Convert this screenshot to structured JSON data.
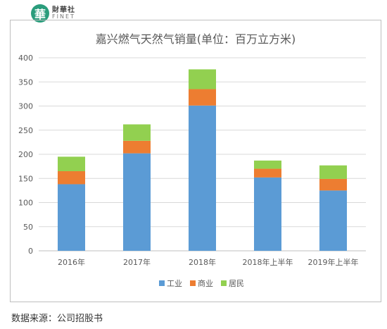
{
  "brand": {
    "icon_glyph": "華",
    "name_cn": "財華社",
    "name_en": "FINET",
    "color": "#2a9d7c"
  },
  "source_note": "数据来源：公司招股书",
  "chart_data": {
    "type": "bar",
    "stacked": true,
    "title": "嘉兴燃气天然气销量(单位：百万立方米)",
    "xlabel": "",
    "ylabel": "",
    "categories": [
      "2016年",
      "2017年",
      "2018年",
      "2018年上半年",
      "2019年上半年"
    ],
    "ylim": [
      0,
      400
    ],
    "yticks": [
      0,
      50,
      100,
      150,
      200,
      250,
      300,
      350,
      400
    ],
    "grid": true,
    "legend_position": "bottom",
    "series": [
      {
        "name": "工业",
        "color": "#5b9bd5",
        "values": [
          138,
          202,
          301,
          152,
          125
        ]
      },
      {
        "name": "商业",
        "color": "#ed7d31",
        "values": [
          27,
          26,
          34,
          18,
          24
        ]
      },
      {
        "name": "居民",
        "color": "#92d050",
        "values": [
          30,
          34,
          41,
          17,
          28
        ]
      }
    ]
  }
}
